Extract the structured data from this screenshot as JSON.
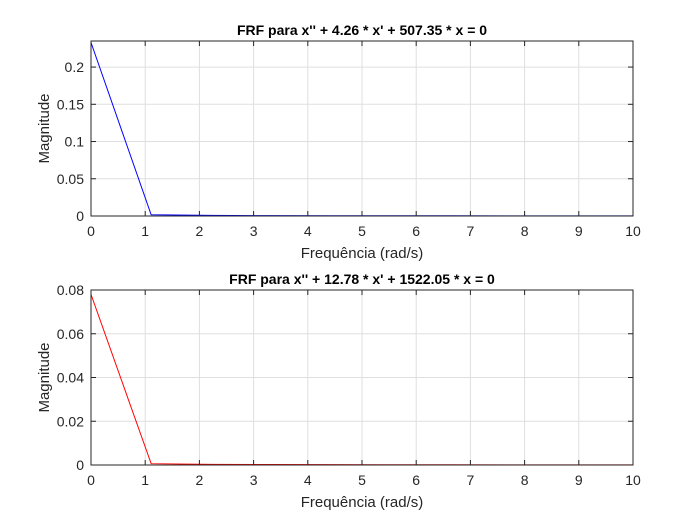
{
  "chart_data": [
    {
      "type": "line",
      "title": "FRF para x'' + 4.26 * x' + 507.35 * x = 0",
      "xlabel": "Frequência (rad/s)",
      "ylabel": "Magnitude",
      "xlim": [
        0,
        10
      ],
      "ylim": [
        0,
        0.235
      ],
      "xticks": [
        0,
        1,
        2,
        3,
        4,
        5,
        6,
        7,
        8,
        9,
        10
      ],
      "yticks": [
        0,
        0.05,
        0.1,
        0.15,
        0.2
      ],
      "xtick_labels": [
        "0",
        "1",
        "2",
        "3",
        "4",
        "5",
        "6",
        "7",
        "8",
        "9",
        "10"
      ],
      "ytick_labels": [
        "0",
        "0.05",
        "0.1",
        "0.15",
        "0.2"
      ],
      "grid": true,
      "series": [
        {
          "color": "#0000ff",
          "x": [
            0,
            1.11,
            2.22,
            3.33,
            4.44,
            5.56,
            6.67,
            7.78,
            8.89,
            10
          ],
          "y": [
            0.233,
            0.0016,
            0.0008,
            0.0005,
            0.0004,
            0.0003,
            0.00025,
            0.0002,
            0.00018,
            0.00015
          ]
        }
      ]
    },
    {
      "type": "line",
      "title": "FRF para x'' + 12.78 * x' + 1522.05 * x = 0",
      "xlabel": "Frequência (rad/s)",
      "ylabel": "Magnitude",
      "xlim": [
        0,
        10
      ],
      "ylim": [
        0,
        0.08
      ],
      "xticks": [
        0,
        1,
        2,
        3,
        4,
        5,
        6,
        7,
        8,
        9,
        10
      ],
      "yticks": [
        0,
        0.02,
        0.04,
        0.06,
        0.08
      ],
      "xtick_labels": [
        "0",
        "1",
        "2",
        "3",
        "4",
        "5",
        "6",
        "7",
        "8",
        "9",
        "10"
      ],
      "ytick_labels": [
        "0",
        "0.02",
        "0.04",
        "0.06",
        "0.08"
      ],
      "grid": true,
      "series": [
        {
          "color": "#ff0000",
          "x": [
            0,
            1.11,
            2.22,
            3.33,
            4.44,
            5.56,
            6.67,
            7.78,
            8.89,
            10
          ],
          "y": [
            0.078,
            0.0006,
            0.0003,
            0.0002,
            0.00015,
            0.00012,
            0.0001,
            8e-05,
            7e-05,
            6e-05
          ]
        }
      ]
    }
  ]
}
